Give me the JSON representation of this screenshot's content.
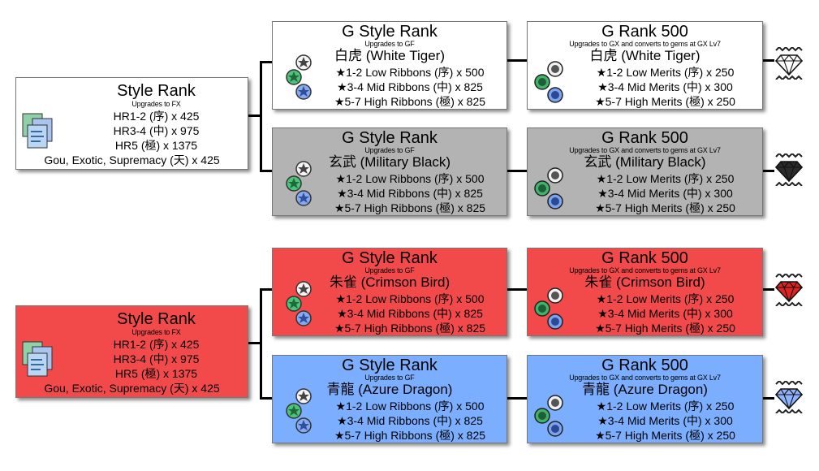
{
  "style_rank_title": "Style Rank",
  "style_rank_sub": "Upgrades to FX",
  "style_rank_lines": [
    "HR1-2 (序) x 425",
    "HR3-4 (中) x 975",
    "HR5 (極) x 1375",
    "Gou, Exotic, Supremacy (天) x 425"
  ],
  "g_style_title": "G Style Rank",
  "g_style_sub": "Upgrades to GF",
  "g500_title": "G Rank 500",
  "g500_sub": "Upgrades to GX and converts to gems at GX Lv7",
  "colors": {
    "white": "#ffffff",
    "gray": "#b3b3b3",
    "red": "#f24a4a",
    "blue": "#7baeff",
    "gem_white": "#ffffff",
    "gem_black": "#2a2a2a",
    "gem_red": "#e02222",
    "gem_blue": "#8fb4ff"
  },
  "groups": [
    {
      "name": "白虎 (White Tiger)",
      "color": "white",
      "gem_color": "gem_white",
      "ribbons": [
        "★1-2 Low Ribbons (序) x 500",
        "★3-4 Mid Ribbons (中) x 825",
        "★5-7 High Ribbons (極) x 825"
      ],
      "merits": [
        "★1-2 Low Merits (序) x 250",
        "★3-4 Mid Merits (中) x 300",
        "★5-7 High Merits (極) x 250"
      ]
    },
    {
      "name": "玄武 (Military Black)",
      "color": "gray",
      "gem_color": "gem_black",
      "ribbons": [
        "★1-2 Low Ribbons (序) x 500",
        "★3-4 Mid Ribbons (中) x 825",
        "★5-7 High Ribbons (極) x 825"
      ],
      "merits": [
        "★1-2 Low Merits (序) x 250",
        "★3-4 Mid Merits (中) x 300",
        "★5-7 High Merits (極) x 250"
      ]
    },
    {
      "name": "朱雀 (Crimson Bird)",
      "color": "red",
      "gem_color": "gem_red",
      "ribbons": [
        "★1-2 Low Ribbons (序) x 500",
        "★3-4 Mid Ribbons (中) x 825",
        "★5-7 High Ribbons (極) x 825"
      ],
      "merits": [
        "★1-2 Low Merits (序) x 250",
        "★3-4 Mid Merits (中) x 300",
        "★5-7 High Merits (極) x 250"
      ]
    },
    {
      "name": "青龍 (Azure Dragon)",
      "color": "blue",
      "gem_color": "gem_blue",
      "ribbons": [
        "★1-2 Low Ribbons (序) x 500",
        "★3-4 Mid Ribbons (中) x 825",
        "★5-7 High Ribbons (極) x 825"
      ],
      "merits": [
        "★1-2 Low Merits (序) x 250",
        "★3-4 Mid Merits (中) x 300",
        "★5-7 High Merits (極) x 250"
      ]
    }
  ],
  "style_boxes": [
    {
      "color": "white"
    },
    {
      "color": "red"
    }
  ]
}
